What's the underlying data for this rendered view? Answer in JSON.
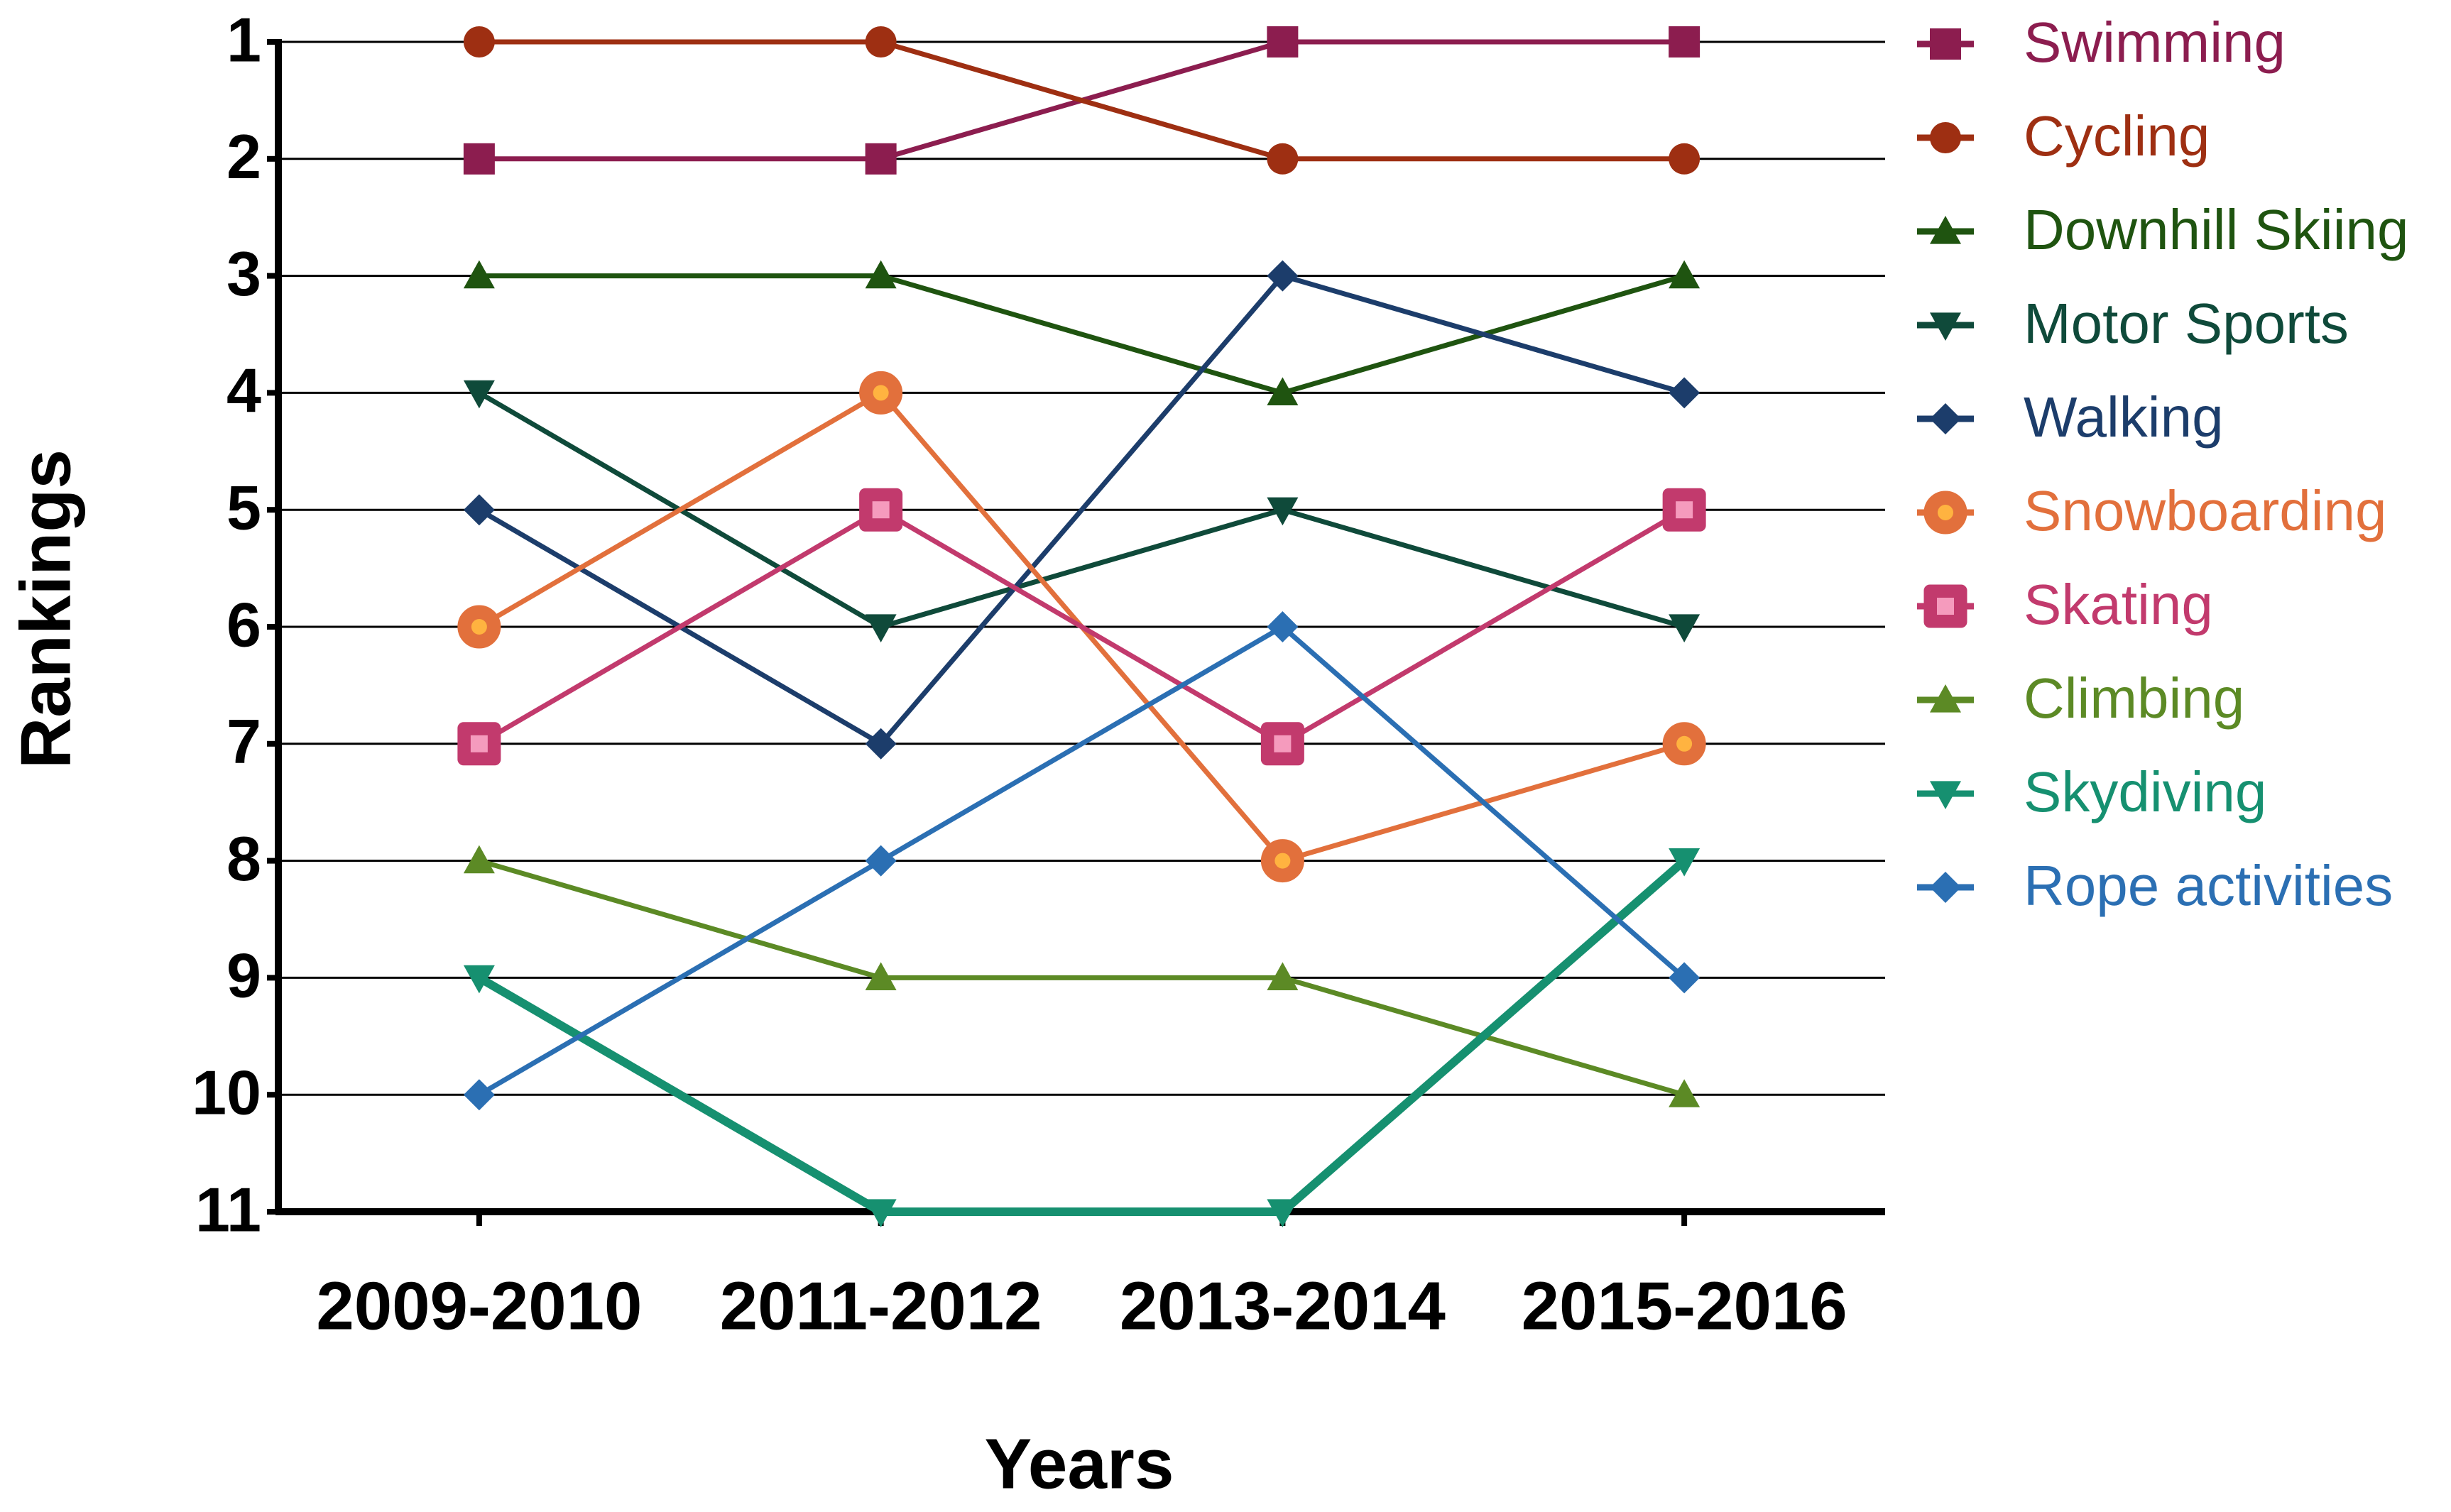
{
  "chart_data": {
    "type": "line",
    "x_axis_label": "Years",
    "y_axis_label": "Rankings",
    "categories": [
      "2009-2010",
      "2011-2012",
      "2013-2014",
      "2015-2016"
    ],
    "ylim": [
      1,
      11
    ],
    "yticks": [
      1,
      2,
      3,
      4,
      5,
      6,
      7,
      8,
      9,
      10,
      11
    ],
    "y_inverted": true,
    "grid": true,
    "legend": "right",
    "series": [
      {
        "name": "Swimming",
        "color": "#8c1d4f",
        "marker": "square",
        "values": [
          2,
          2,
          1,
          1
        ]
      },
      {
        "name": "Cycling",
        "color": "#9e2f12",
        "marker": "circle",
        "values": [
          1,
          1,
          2,
          2
        ]
      },
      {
        "name": "Downhill Skiing",
        "color": "#1f5410",
        "marker": "triangle-up",
        "values": [
          3,
          3,
          4,
          3
        ]
      },
      {
        "name": "Motor Sports",
        "color": "#0f4a3a",
        "marker": "triangle-down",
        "values": [
          4,
          6,
          5,
          6
        ]
      },
      {
        "name": "Walking",
        "color": "#1c3d6b",
        "marker": "diamond",
        "values": [
          5,
          7,
          3,
          4
        ]
      },
      {
        "name": "Snowboarding",
        "color": "#e2703c",
        "marker": "circle-big",
        "values": [
          6,
          4,
          8,
          7
        ]
      },
      {
        "name": "Skating",
        "color": "#c23a6d",
        "marker": "square-big",
        "values": [
          7,
          5,
          7,
          5
        ]
      },
      {
        "name": "Climbing",
        "color": "#5c8a25",
        "marker": "triangle-up",
        "values": [
          8,
          9,
          9,
          10
        ]
      },
      {
        "name": "Skydiving",
        "color": "#169070",
        "marker": "triangle-down",
        "values": [
          9,
          11,
          11,
          8
        ]
      },
      {
        "name": "Rope activities",
        "color": "#2b6fb3",
        "marker": "diamond",
        "values": [
          10,
          8,
          6,
          9
        ]
      }
    ]
  }
}
